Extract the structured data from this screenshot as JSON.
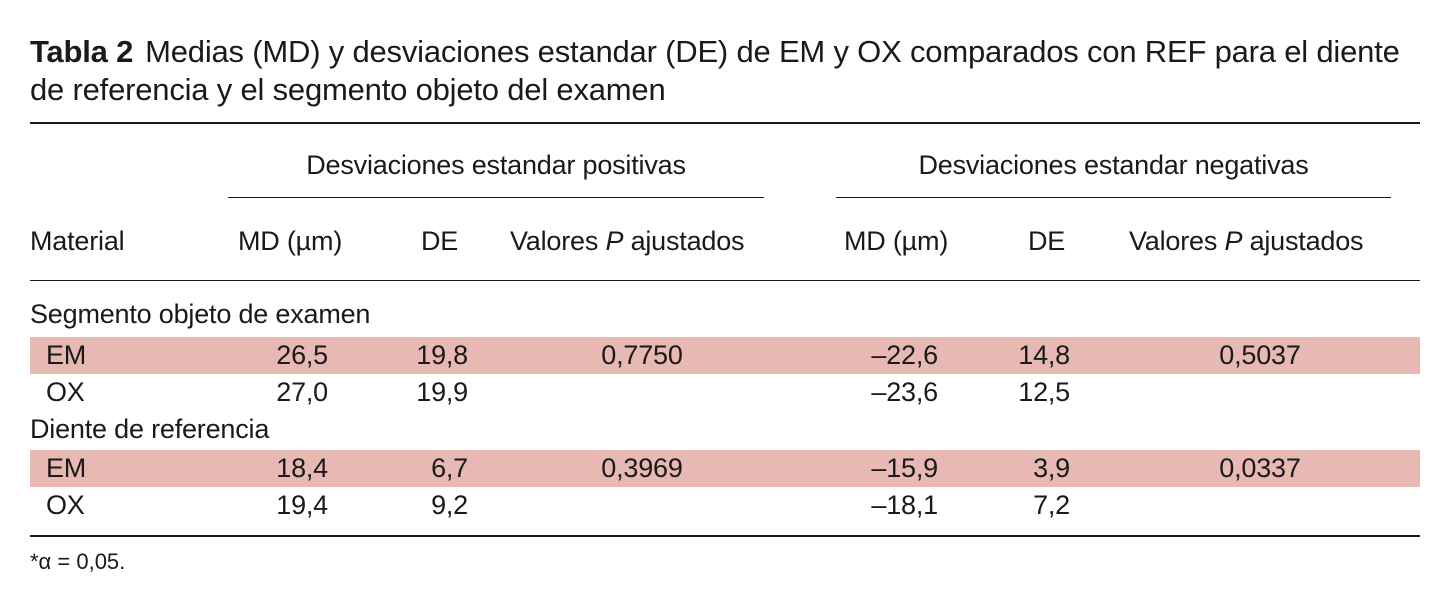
{
  "caption": {
    "label": "Tabla 2",
    "text": "Medias (MD) y desviaciones estandar (DE) de EM y OX comparados con REF para el diente de referencia y el segmento objeto del examen"
  },
  "headers": {
    "group_positive": "Desviaciones estandar positivas",
    "group_negative": "Desviaciones estandar negativas",
    "material": "Material",
    "md": "MD (µm)",
    "de": "DE",
    "p_prefix": "Valores ",
    "p_italic": "P",
    "p_suffix": " ajustados"
  },
  "sections": [
    {
      "title": "Segmento objeto de examen",
      "rows": [
        {
          "material": "EM",
          "pos_md": "26,5",
          "pos_de": "19,8",
          "pos_p": "0,7750",
          "neg_md": "–22,6",
          "neg_de": "14,8",
          "neg_p": "0,5037",
          "highlight": true
        },
        {
          "material": "OX",
          "pos_md": "27,0",
          "pos_de": "19,9",
          "pos_p": "",
          "neg_md": "–23,6",
          "neg_de": "12,5",
          "neg_p": "",
          "highlight": false
        }
      ]
    },
    {
      "title": "Diente de referencia",
      "rows": [
        {
          "material": "EM",
          "pos_md": "18,4",
          "pos_de": "6,7",
          "pos_p": "0,3969",
          "neg_md": "–15,9",
          "neg_de": "3,9",
          "neg_p": "0,0337",
          "highlight": true
        },
        {
          "material": "OX",
          "pos_md": "19,4",
          "pos_de": "9,2",
          "pos_p": "",
          "neg_md": "–18,1",
          "neg_de": "7,2",
          "neg_p": "",
          "highlight": false
        }
      ]
    }
  ],
  "footnote": "*α = 0,05.",
  "colors": {
    "highlight_band": "#e8b8b2",
    "text": "#1a1a1a"
  }
}
